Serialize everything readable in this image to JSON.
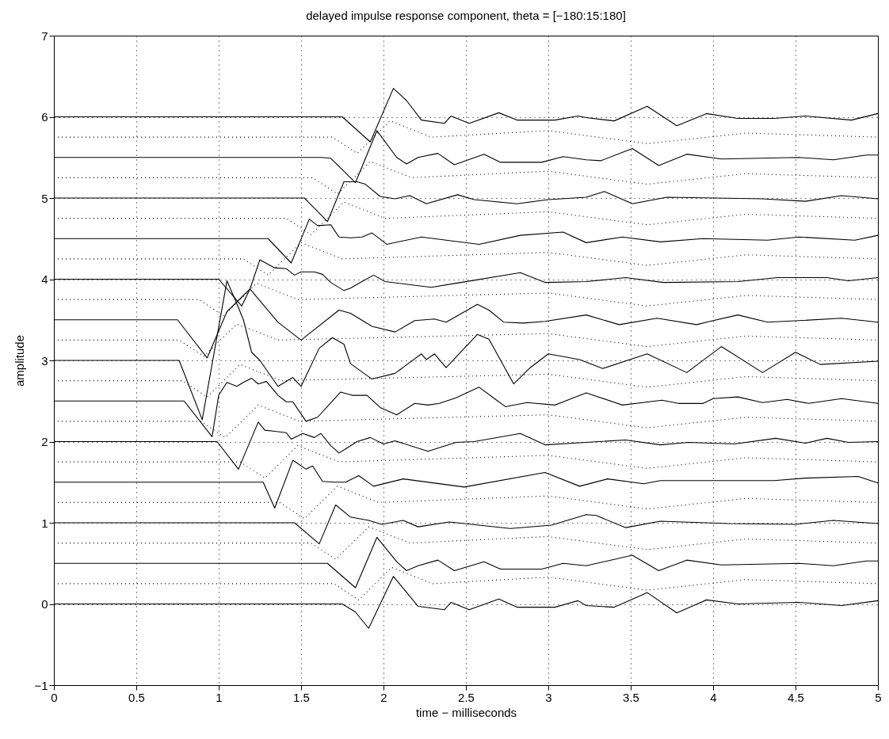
{
  "chart_data": {
    "type": "line",
    "title": "delayed impulse response component, theta = [−180:15:180]",
    "xlabel": "time − milliseconds",
    "ylabel": "amplitude",
    "xlim": [
      0,
      5
    ],
    "ylim": [
      -1,
      7
    ],
    "xticks": [
      0,
      0.5,
      1,
      1.5,
      2,
      2.5,
      3,
      3.5,
      4,
      4.5,
      5
    ],
    "yticks": [
      {
        "value": -1,
        "label": "−1"
      },
      0,
      1,
      2,
      3,
      4,
      5,
      6,
      7
    ],
    "grid": true,
    "line_style": "solid",
    "marker": "none",
    "series": [
      {
        "color": "#000000",
        "x": [
          0,
          1.75,
          1.83,
          1.91,
          2.06,
          2.21,
          2.37,
          2.41,
          2.52,
          2.7,
          2.81,
          3.04,
          3.18,
          3.23,
          3.4,
          3.6,
          3.78,
          3.96,
          4.15,
          4.52,
          4.78,
          5.0
        ],
        "values": [
          0,
          0,
          -0.1,
          -0.3,
          0.34,
          -0.03,
          -0.07,
          0.02,
          -0.07,
          0.06,
          -0.04,
          -0.04,
          0.04,
          -0.02,
          -0.04,
          0.14,
          -0.11,
          0.05,
          0,
          0.02,
          -0.02,
          0.04
        ]
      },
      {
        "color": "#000000",
        "line_style": "dotted",
        "x": [
          0,
          1.7,
          1.85,
          2.05,
          2.3,
          3.0,
          3.6,
          4.2,
          5.0
        ],
        "values": [
          0.25,
          0.25,
          0.05,
          0.45,
          0.25,
          0.33,
          0.17,
          0.3,
          0.25
        ]
      },
      {
        "color": "#000000",
        "x": [
          0,
          1.66,
          1.83,
          1.96,
          2.08,
          2.14,
          2.21,
          2.33,
          2.43,
          2.61,
          2.71,
          2.96,
          3.09,
          3.23,
          3.51,
          3.67,
          3.84,
          4.05,
          4.52,
          4.73,
          4.93,
          5.0
        ],
        "values": [
          0.5,
          0.5,
          0.2,
          0.82,
          0.52,
          0.41,
          0.47,
          0.54,
          0.41,
          0.52,
          0.43,
          0.43,
          0.5,
          0.47,
          0.6,
          0.41,
          0.54,
          0.48,
          0.5,
          0.47,
          0.53,
          0.53
        ]
      },
      {
        "color": "#000000",
        "line_style": "dotted",
        "x": [
          0,
          1.56,
          1.71,
          1.91,
          2.16,
          3.0,
          3.6,
          4.2,
          5.0
        ],
        "values": [
          0.75,
          0.75,
          0.55,
          0.95,
          0.75,
          0.83,
          0.67,
          0.8,
          0.75
        ]
      },
      {
        "color": "#000000",
        "x": [
          0,
          1.46,
          1.61,
          1.71,
          1.8,
          1.91,
          1.99,
          2.12,
          2.21,
          2.4,
          2.77,
          3.02,
          3.23,
          3.29,
          3.47,
          3.68,
          4.09,
          4.5,
          4.73,
          5.0
        ],
        "values": [
          1,
          1,
          0.74,
          1.22,
          1.07,
          1.03,
          0.98,
          1.03,
          0.95,
          1.01,
          0.93,
          0.97,
          1.1,
          1.09,
          0.94,
          1.02,
          0.99,
          0.98,
          1.03,
          0.99
        ]
      },
      {
        "color": "#000000",
        "line_style": "dotted",
        "x": [
          0,
          1.37,
          1.52,
          1.72,
          1.97,
          3.0,
          3.6,
          4.2,
          5.0
        ],
        "values": [
          1.25,
          1.25,
          1.05,
          1.45,
          1.25,
          1.33,
          1.17,
          1.3,
          1.25
        ]
      },
      {
        "color": "#000000",
        "x": [
          0,
          1.27,
          1.34,
          1.45,
          1.53,
          1.57,
          1.63,
          1.7,
          1.77,
          1.85,
          1.94,
          2.12,
          2.49,
          2.98,
          3.19,
          3.36,
          3.58,
          3.68,
          4.37,
          4.56,
          4.88,
          5.0
        ],
        "values": [
          1.5,
          1.5,
          1.18,
          1.77,
          1.66,
          1.7,
          1.51,
          1.5,
          1.5,
          1.58,
          1.45,
          1.54,
          1.44,
          1.62,
          1.45,
          1.54,
          1.48,
          1.52,
          1.52,
          1.55,
          1.57,
          1.49
        ]
      },
      {
        "color": "#000000",
        "line_style": "dotted",
        "x": [
          0,
          1.13,
          1.28,
          1.48,
          1.73,
          3.0,
          3.6,
          4.2,
          5.0
        ],
        "values": [
          1.75,
          1.75,
          1.55,
          1.95,
          1.75,
          1.83,
          1.67,
          1.8,
          1.75
        ]
      },
      {
        "color": "#000000",
        "x": [
          0,
          0.99,
          1.12,
          1.24,
          1.28,
          1.33,
          1.41,
          1.44,
          1.51,
          1.58,
          1.62,
          1.68,
          1.73,
          1.77,
          1.84,
          1.92,
          2.0,
          2.07,
          2.27,
          2.44,
          2.55,
          2.83,
          2.98,
          3.23,
          3.47,
          3.68,
          3.85,
          4.13,
          4.38,
          4.56,
          4.69,
          4.82,
          5.0
        ],
        "values": [
          2,
          2,
          1.66,
          2.24,
          2.14,
          2.13,
          2.11,
          2.03,
          2.1,
          2.05,
          2.1,
          1.95,
          1.86,
          1.91,
          2.0,
          2.05,
          1.97,
          2.01,
          1.88,
          1.99,
          2.0,
          2.1,
          1.96,
          1.99,
          2.02,
          1.96,
          1.99,
          1.97,
          2.04,
          1.98,
          2.04,
          1.99,
          2.0
        ]
      },
      {
        "color": "#000000",
        "line_style": "dotted",
        "x": [
          0,
          0.89,
          1.04,
          1.24,
          1.49,
          3.0,
          3.6,
          4.2,
          5.0
        ],
        "values": [
          2.25,
          2.25,
          2.05,
          2.45,
          2.25,
          2.33,
          2.17,
          2.3,
          2.25
        ]
      },
      {
        "color": "#000000",
        "x": [
          0,
          0.79,
          0.96,
          1.0,
          1.05,
          1.11,
          1.15,
          1.2,
          1.24,
          1.29,
          1.36,
          1.41,
          1.45,
          1.53,
          1.6,
          1.74,
          1.81,
          1.9,
          1.98,
          2.08,
          2.19,
          2.27,
          2.34,
          2.44,
          2.58,
          2.68,
          2.74,
          2.87,
          3.04,
          3.23,
          3.45,
          3.69,
          3.79,
          3.94,
          4.0,
          4.15,
          4.3,
          4.45,
          4.58,
          4.78,
          5.0
        ],
        "values": [
          2.5,
          2.5,
          2.06,
          2.57,
          2.73,
          2.68,
          2.73,
          2.78,
          2.71,
          2.74,
          2.57,
          2.49,
          2.49,
          2.25,
          2.3,
          2.61,
          2.57,
          2.57,
          2.42,
          2.33,
          2.47,
          2.45,
          2.47,
          2.54,
          2.67,
          2.52,
          2.43,
          2.48,
          2.45,
          2.6,
          2.45,
          2.51,
          2.47,
          2.47,
          2.53,
          2.55,
          2.48,
          2.52,
          2.47,
          2.53,
          2.47
        ]
      },
      {
        "color": "#000000",
        "line_style": "dotted",
        "x": [
          0,
          0.78,
          0.93,
          1.13,
          1.38,
          3.0,
          3.6,
          4.2,
          5.0
        ],
        "values": [
          2.75,
          2.75,
          2.55,
          2.95,
          2.75,
          2.83,
          2.67,
          2.8,
          2.75
        ]
      },
      {
        "color": "#000000",
        "x": [
          0,
          0.76,
          0.9,
          1.05,
          1.11,
          1.15,
          1.2,
          1.25,
          1.36,
          1.45,
          1.5,
          1.61,
          1.69,
          1.76,
          1.8,
          1.93,
          2.07,
          2.23,
          2.26,
          2.31,
          2.38,
          2.57,
          2.64,
          2.79,
          2.89,
          3.0,
          3.19,
          3.33,
          3.6,
          3.84,
          4.05,
          4.3,
          4.5,
          4.65,
          5.0
        ],
        "values": [
          3,
          3,
          2.27,
          3.98,
          3.7,
          3.5,
          3.1,
          3.0,
          2.68,
          2.79,
          2.68,
          3.15,
          3.28,
          3.2,
          2.96,
          2.77,
          2.84,
          3.08,
          3.01,
          3.08,
          2.91,
          3.32,
          3.26,
          2.71,
          2.91,
          3.08,
          3.01,
          2.9,
          3.08,
          2.85,
          3.17,
          2.85,
          3.1,
          2.95,
          2.99
        ]
      },
      {
        "color": "#000000",
        "line_style": "dotted",
        "x": [
          0,
          0.76,
          0.91,
          1.11,
          1.36,
          3.0,
          3.6,
          4.2,
          5.0
        ],
        "values": [
          3.25,
          3.25,
          3.05,
          3.45,
          3.25,
          3.33,
          3.17,
          3.3,
          3.25
        ]
      },
      {
        "color": "#000000",
        "x": [
          0,
          0.75,
          0.93,
          1.05,
          1.15,
          1.19,
          1.36,
          1.5,
          1.73,
          1.8,
          1.93,
          2.07,
          2.19,
          2.31,
          2.38,
          2.57,
          2.64,
          2.73,
          2.85,
          2.98,
          3.23,
          3.43,
          3.66,
          3.9,
          3.98,
          4.15,
          4.33,
          4.52,
          4.78,
          5.0
        ],
        "values": [
          3.5,
          3.5,
          3.03,
          3.6,
          3.8,
          3.88,
          3.47,
          3.25,
          3.62,
          3.58,
          3.42,
          3.35,
          3.49,
          3.51,
          3.47,
          3.69,
          3.62,
          3.47,
          3.46,
          3.48,
          3.56,
          3.44,
          3.52,
          3.44,
          3.48,
          3.56,
          3.47,
          3.49,
          3.52,
          3.47
        ]
      },
      {
        "color": "#000000",
        "line_style": "dotted",
        "x": [
          0,
          0.88,
          1.03,
          1.23,
          1.48,
          3.0,
          3.6,
          4.2,
          5.0
        ],
        "values": [
          3.75,
          3.75,
          3.55,
          3.95,
          3.75,
          3.83,
          3.67,
          3.8,
          3.75
        ]
      },
      {
        "color": "#000000",
        "x": [
          0,
          1.0,
          1.14,
          1.19,
          1.25,
          1.34,
          1.41,
          1.46,
          1.5,
          1.58,
          1.63,
          1.68,
          1.76,
          1.8,
          1.86,
          1.94,
          2.01,
          2.29,
          2.44,
          2.83,
          2.98,
          3.23,
          3.47,
          3.7,
          4.15,
          4.39,
          4.69,
          4.82,
          5.0
        ],
        "values": [
          4,
          4,
          3.67,
          3.88,
          4.24,
          4.14,
          4.13,
          4.05,
          4.09,
          4.09,
          4.06,
          3.96,
          3.86,
          3.89,
          3.96,
          4.05,
          3.97,
          3.9,
          3.95,
          4.08,
          3.96,
          3.97,
          4.02,
          3.96,
          3.97,
          4.02,
          4.02,
          3.98,
          4.02
        ]
      },
      {
        "color": "#000000",
        "line_style": "dotted",
        "x": [
          0,
          1.15,
          1.3,
          1.5,
          1.75,
          3.0,
          3.6,
          4.2,
          5.0
        ],
        "values": [
          4.25,
          4.25,
          4.05,
          4.45,
          4.25,
          4.33,
          4.17,
          4.3,
          4.25
        ]
      },
      {
        "color": "#000000",
        "x": [
          0,
          1.3,
          1.44,
          1.55,
          1.6,
          1.68,
          1.73,
          1.8,
          1.87,
          1.93,
          2.02,
          2.23,
          2.58,
          2.83,
          3.09,
          3.23,
          3.45,
          3.68,
          3.94,
          4.33,
          4.52,
          4.86,
          5.0
        ],
        "values": [
          4.5,
          4.5,
          4.2,
          4.74,
          4.66,
          4.67,
          4.52,
          4.51,
          4.52,
          4.57,
          4.43,
          4.52,
          4.43,
          4.54,
          4.58,
          4.45,
          4.52,
          4.46,
          4.5,
          4.48,
          4.52,
          4.48,
          4.54
        ]
      },
      {
        "color": "#000000",
        "line_style": "dotted",
        "x": [
          0,
          1.41,
          1.56,
          1.76,
          2.01,
          3.0,
          3.6,
          4.2,
          5.0
        ],
        "values": [
          4.75,
          4.75,
          4.55,
          4.95,
          4.75,
          4.83,
          4.67,
          4.8,
          4.75
        ]
      },
      {
        "color": "#000000",
        "x": [
          0,
          1.52,
          1.66,
          1.76,
          1.84,
          1.89,
          1.98,
          2.07,
          2.16,
          2.26,
          2.45,
          2.55,
          2.81,
          3.0,
          3.23,
          3.34,
          3.51,
          3.72,
          4.3,
          4.56,
          4.78,
          5.0
        ],
        "values": [
          5,
          5,
          4.71,
          5.2,
          5.2,
          5.17,
          5.02,
          4.99,
          5.03,
          4.93,
          5.04,
          4.98,
          4.93,
          4.98,
          5.01,
          5.08,
          4.93,
          5.01,
          4.99,
          4.96,
          5.03,
          4.99
        ]
      },
      {
        "color": "#000000",
        "line_style": "dotted",
        "x": [
          0,
          1.57,
          1.72,
          1.92,
          2.17,
          3.0,
          3.6,
          4.2,
          5.0
        ],
        "values": [
          5.25,
          5.25,
          5.05,
          5.45,
          5.25,
          5.33,
          5.17,
          5.3,
          5.25
        ]
      },
      {
        "color": "#000000",
        "x": [
          0,
          1.62,
          1.68,
          1.83,
          1.96,
          2.08,
          2.14,
          2.21,
          2.33,
          2.43,
          2.61,
          2.71,
          2.96,
          3.09,
          3.23,
          3.32,
          3.51,
          3.67,
          3.84,
          4.05,
          4.52,
          4.73,
          4.93,
          5.0
        ],
        "values": [
          5.5,
          5.5,
          5.49,
          5.19,
          5.83,
          5.5,
          5.42,
          5.5,
          5.55,
          5.41,
          5.54,
          5.44,
          5.44,
          5.51,
          5.47,
          5.46,
          5.61,
          5.4,
          5.54,
          5.48,
          5.5,
          5.47,
          5.53,
          5.53
        ]
      },
      {
        "color": "#000000",
        "line_style": "dotted",
        "x": [
          0,
          1.69,
          1.84,
          2.04,
          2.29,
          3.0,
          3.6,
          4.2,
          5.0
        ],
        "values": [
          5.75,
          5.75,
          5.55,
          5.95,
          5.75,
          5.83,
          5.67,
          5.8,
          5.75
        ]
      },
      {
        "color": "#000000",
        "x": [
          0,
          1.75,
          1.92,
          2.06,
          2.14,
          2.23,
          2.37,
          2.41,
          2.52,
          2.7,
          2.81,
          3.04,
          3.18,
          3.23,
          3.4,
          3.6,
          3.78,
          3.96,
          4.15,
          4.37,
          4.56,
          4.84,
          5.0
        ],
        "values": [
          6,
          6,
          5.69,
          6.35,
          6.2,
          5.96,
          5.92,
          6.01,
          5.92,
          6.05,
          5.96,
          5.96,
          6.01,
          5.99,
          5.95,
          6.13,
          5.89,
          6.04,
          5.98,
          5.98,
          6.01,
          5.96,
          6.04
        ]
      }
    ]
  }
}
